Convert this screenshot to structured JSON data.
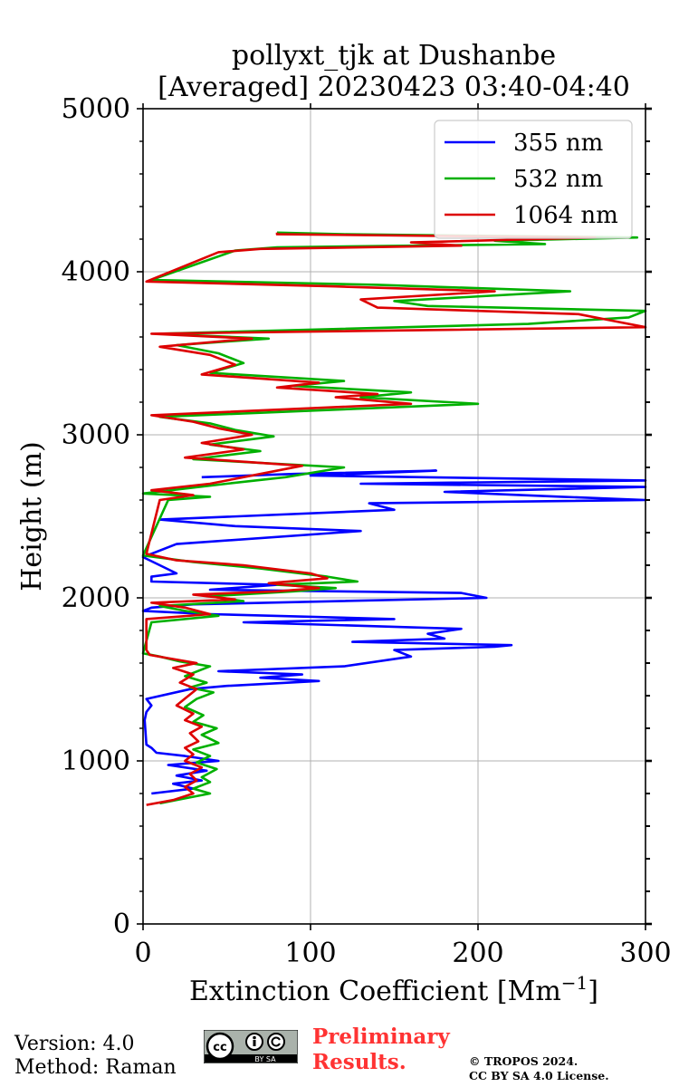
{
  "chart_data": {
    "type": "line",
    "title": "pollyxt_tjk at Dushanbe",
    "subtitle": "[Averaged] 20230423 03:40-04:40",
    "xlabel": "Extinction Coefficient [Mm",
    "xlabel_exp": "−1",
    "xlabel_close": "]",
    "ylabel": "Height (m)",
    "xlim": [
      0,
      300
    ],
    "ylim": [
      0,
      5000
    ],
    "xticks": [
      0,
      100,
      200,
      300
    ],
    "yticks": [
      0,
      1000,
      2000,
      3000,
      4000,
      5000
    ],
    "grid": true,
    "legend_position": "top-right",
    "series": [
      {
        "name": "355 nm",
        "color": "#0000ff",
        "points": [
          [
            5,
            800
          ],
          [
            30,
            830
          ],
          [
            18,
            860
          ],
          [
            35,
            880
          ],
          [
            20,
            910
          ],
          [
            38,
            940
          ],
          [
            15,
            975
          ],
          [
            45,
            1000
          ],
          [
            25,
            1030
          ],
          [
            8,
            1050
          ],
          [
            5,
            1080
          ],
          [
            2,
            1100
          ],
          [
            1,
            1250
          ],
          [
            2,
            1300
          ],
          [
            5,
            1340
          ],
          [
            2,
            1380
          ],
          [
            28,
            1440
          ],
          [
            50,
            1460
          ],
          [
            105,
            1490
          ],
          [
            70,
            1510
          ],
          [
            95,
            1530
          ],
          [
            45,
            1550
          ],
          [
            120,
            1580
          ],
          [
            160,
            1640
          ],
          [
            150,
            1680
          ],
          [
            210,
            1700
          ],
          [
            220,
            1710
          ],
          [
            125,
            1730
          ],
          [
            180,
            1750
          ],
          [
            170,
            1780
          ],
          [
            190,
            1810
          ],
          [
            60,
            1850
          ],
          [
            150,
            1870
          ],
          [
            40,
            1900
          ],
          [
            0,
            1920
          ],
          [
            5,
            1940
          ],
          [
            30,
            1960
          ],
          [
            205,
            2000
          ],
          [
            190,
            2030
          ],
          [
            40,
            2050
          ],
          [
            80,
            2080
          ],
          [
            5,
            2100
          ],
          [
            5,
            2130
          ],
          [
            20,
            2150
          ],
          [
            10,
            2200
          ],
          [
            0,
            2250
          ],
          [
            20,
            2330
          ],
          [
            130,
            2410
          ],
          [
            55,
            2440
          ],
          [
            10,
            2480
          ],
          [
            150,
            2540
          ],
          [
            135,
            2580
          ],
          [
            300,
            2600
          ],
          [
            250,
            2620
          ],
          [
            180,
            2650
          ],
          [
            300,
            2680
          ],
          [
            130,
            2700
          ],
          [
            300,
            2720
          ],
          [
            100,
            2750
          ],
          [
            175,
            2780
          ],
          [
            90,
            2760
          ],
          [
            35,
            2740
          ]
        ]
      },
      {
        "name": "532 nm",
        "color": "#00b000",
        "points": [
          [
            10,
            740
          ],
          [
            25,
            770
          ],
          [
            40,
            800
          ],
          [
            30,
            830
          ],
          [
            40,
            870
          ],
          [
            35,
            900
          ],
          [
            44,
            950
          ],
          [
            32,
            990
          ],
          [
            40,
            1030
          ],
          [
            30,
            1070
          ],
          [
            45,
            1110
          ],
          [
            35,
            1160
          ],
          [
            44,
            1200
          ],
          [
            30,
            1240
          ],
          [
            36,
            1280
          ],
          [
            25,
            1330
          ],
          [
            32,
            1380
          ],
          [
            42,
            1420
          ],
          [
            28,
            1450
          ],
          [
            38,
            1480
          ],
          [
            25,
            1520
          ],
          [
            40,
            1580
          ],
          [
            22,
            1610
          ],
          [
            10,
            1640
          ],
          [
            0,
            1660
          ],
          [
            5,
            1850
          ],
          [
            45,
            1890
          ],
          [
            25,
            1920
          ],
          [
            10,
            1950
          ],
          [
            60,
            1980
          ],
          [
            40,
            2010
          ],
          [
            90,
            2040
          ],
          [
            115,
            2060
          ],
          [
            80,
            2080
          ],
          [
            128,
            2100
          ],
          [
            110,
            2130
          ],
          [
            70,
            2180
          ],
          [
            30,
            2220
          ],
          [
            0,
            2260
          ],
          [
            15,
            2600
          ],
          [
            40,
            2620
          ],
          [
            0,
            2640
          ],
          [
            50,
            2700
          ],
          [
            85,
            2740
          ],
          [
            120,
            2800
          ],
          [
            30,
            2850
          ],
          [
            70,
            2900
          ],
          [
            40,
            2940
          ],
          [
            78,
            2990
          ],
          [
            55,
            3030
          ],
          [
            40,
            3070
          ],
          [
            10,
            3110
          ],
          [
            200,
            3190
          ],
          [
            130,
            3230
          ],
          [
            160,
            3260
          ],
          [
            90,
            3300
          ],
          [
            120,
            3330
          ],
          [
            40,
            3380
          ],
          [
            60,
            3440
          ],
          [
            45,
            3500
          ],
          [
            20,
            3550
          ],
          [
            75,
            3590
          ],
          [
            10,
            3620
          ],
          [
            230,
            3680
          ],
          [
            290,
            3720
          ],
          [
            300,
            3760
          ],
          [
            170,
            3790
          ],
          [
            150,
            3820
          ],
          [
            255,
            3880
          ],
          [
            140,
            3920
          ],
          [
            5,
            3950
          ],
          [
            55,
            4130
          ],
          [
            80,
            4150
          ],
          [
            240,
            4170
          ],
          [
            210,
            4190
          ],
          [
            295,
            4210
          ],
          [
            120,
            4230
          ],
          [
            80,
            4240
          ]
        ]
      },
      {
        "name": "1064 nm",
        "color": "#dd0000",
        "points": [
          [
            2,
            730
          ],
          [
            18,
            760
          ],
          [
            30,
            800
          ],
          [
            25,
            840
          ],
          [
            32,
            880
          ],
          [
            28,
            920
          ],
          [
            35,
            960
          ],
          [
            25,
            1000
          ],
          [
            30,
            1040
          ],
          [
            25,
            1080
          ],
          [
            33,
            1120
          ],
          [
            28,
            1170
          ],
          [
            35,
            1210
          ],
          [
            25,
            1250
          ],
          [
            30,
            1290
          ],
          [
            20,
            1340
          ],
          [
            26,
            1390
          ],
          [
            32,
            1440
          ],
          [
            22,
            1480
          ],
          [
            30,
            1530
          ],
          [
            18,
            1570
          ],
          [
            32,
            1600
          ],
          [
            15,
            1630
          ],
          [
            4,
            1650
          ],
          [
            2,
            1680
          ],
          [
            2,
            1870
          ],
          [
            40,
            1900
          ],
          [
            25,
            1940
          ],
          [
            5,
            1970
          ],
          [
            55,
            1990
          ],
          [
            30,
            2020
          ],
          [
            80,
            2040
          ],
          [
            105,
            2060
          ],
          [
            75,
            2090
          ],
          [
            110,
            2120
          ],
          [
            100,
            2150
          ],
          [
            60,
            2200
          ],
          [
            20,
            2230
          ],
          [
            2,
            2270
          ],
          [
            10,
            2600
          ],
          [
            30,
            2630
          ],
          [
            5,
            2660
          ],
          [
            40,
            2700
          ],
          [
            70,
            2760
          ],
          [
            95,
            2810
          ],
          [
            25,
            2860
          ],
          [
            60,
            2910
          ],
          [
            35,
            2950
          ],
          [
            65,
            3000
          ],
          [
            45,
            3040
          ],
          [
            30,
            3080
          ],
          [
            5,
            3120
          ],
          [
            160,
            3190
          ],
          [
            115,
            3230
          ],
          [
            140,
            3250
          ],
          [
            80,
            3290
          ],
          [
            105,
            3320
          ],
          [
            35,
            3370
          ],
          [
            55,
            3430
          ],
          [
            40,
            3490
          ],
          [
            10,
            3540
          ],
          [
            65,
            3590
          ],
          [
            5,
            3620
          ],
          [
            300,
            3660
          ],
          [
            280,
            3700
          ],
          [
            260,
            3740
          ],
          [
            140,
            3780
          ],
          [
            130,
            3830
          ],
          [
            210,
            3880
          ],
          [
            115,
            3910
          ],
          [
            2,
            3940
          ],
          [
            45,
            4120
          ],
          [
            70,
            4140
          ],
          [
            190,
            4160
          ],
          [
            160,
            4180
          ],
          [
            270,
            4210
          ],
          [
            80,
            4230
          ],
          [
            80,
            4240
          ]
        ]
      }
    ]
  },
  "footer": {
    "version": "Version: 4.0",
    "method": "Method: Raman",
    "license_badge_text": "BY SA",
    "preliminary_line1": "Preliminary",
    "preliminary_line2": "Results.",
    "copyright_line1": "© TROPOS 2024.",
    "copyright_line2": "CC BY SA 4.0 License."
  }
}
